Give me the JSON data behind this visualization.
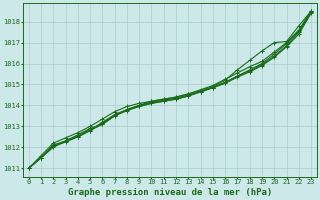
{
  "title": "Graphe pression niveau de la mer (hPa)",
  "background_color": "#cce8e8",
  "grid_color": "#aacccc",
  "line_color": "#1a6b1a",
  "x_values": [
    0,
    1,
    2,
    3,
    4,
    5,
    6,
    7,
    8,
    9,
    10,
    11,
    12,
    13,
    14,
    15,
    16,
    17,
    18,
    19,
    20,
    21,
    22,
    23
  ],
  "series": [
    [
      1011.0,
      1011.5,
      1012.0,
      1012.3,
      1012.6,
      1012.9,
      1013.1,
      1013.5,
      1013.8,
      1014.0,
      1014.2,
      1014.3,
      1014.4,
      1014.55,
      1014.7,
      1014.9,
      1015.2,
      1015.7,
      1016.15,
      1016.6,
      1017.0,
      1017.05,
      1017.8,
      1018.5
    ],
    [
      1011.0,
      1011.5,
      1012.1,
      1012.3,
      1012.5,
      1012.8,
      1013.2,
      1013.55,
      1013.8,
      1014.0,
      1014.15,
      1014.25,
      1014.35,
      1014.5,
      1014.65,
      1014.85,
      1015.1,
      1015.4,
      1015.7,
      1016.0,
      1016.45,
      1016.95,
      1017.55,
      1018.45
    ],
    [
      1011.0,
      1011.5,
      1012.05,
      1012.25,
      1012.5,
      1012.8,
      1013.1,
      1013.5,
      1013.75,
      1013.95,
      1014.1,
      1014.2,
      1014.3,
      1014.45,
      1014.65,
      1014.85,
      1015.05,
      1015.35,
      1015.6,
      1015.9,
      1016.3,
      1016.8,
      1017.4,
      1018.4
    ],
    [
      1011.0,
      1011.5,
      1012.1,
      1012.3,
      1012.55,
      1012.85,
      1013.15,
      1013.55,
      1013.8,
      1013.95,
      1014.1,
      1014.2,
      1014.3,
      1014.45,
      1014.65,
      1014.85,
      1015.1,
      1015.4,
      1015.65,
      1015.95,
      1016.35,
      1016.85,
      1017.5,
      1018.45
    ],
    [
      1011.0,
      1011.6,
      1012.2,
      1012.45,
      1012.7,
      1013.0,
      1013.35,
      1013.7,
      1013.95,
      1014.1,
      1014.2,
      1014.3,
      1014.4,
      1014.55,
      1014.75,
      1014.95,
      1015.25,
      1015.55,
      1015.85,
      1016.1,
      1016.55,
      1017.0,
      1017.6,
      1018.5
    ]
  ],
  "ylim": [
    1010.6,
    1018.9
  ],
  "yticks": [
    1011,
    1012,
    1013,
    1014,
    1015,
    1016,
    1017,
    1018
  ],
  "xlim": [
    -0.5,
    23.5
  ],
  "xticks": [
    0,
    1,
    2,
    3,
    4,
    5,
    6,
    7,
    8,
    9,
    10,
    11,
    12,
    13,
    14,
    15,
    16,
    17,
    18,
    19,
    20,
    21,
    22,
    23
  ],
  "marker": "+",
  "marker_size": 3.5,
  "linewidth": 0.8,
  "title_fontsize": 6.5,
  "tick_fontsize": 5.0,
  "label_color": "#1a6b1a",
  "border_color": "#1a6b1a"
}
